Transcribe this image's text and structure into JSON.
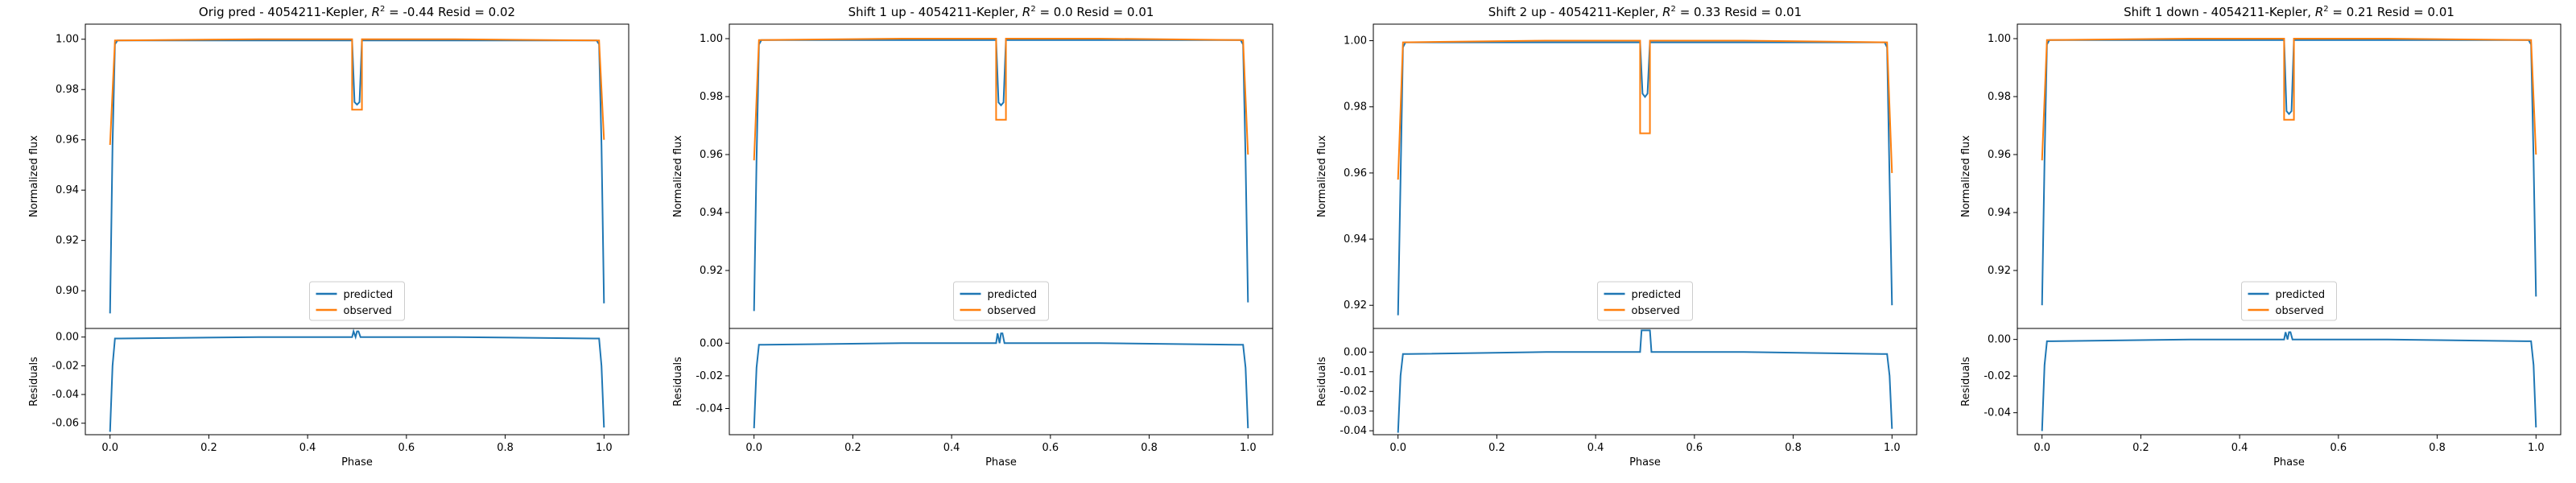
{
  "chart_data": [
    {
      "type": "line",
      "title": "Orig pred - 4054211-Kepler, $R^2 = $-0.44 Resid = 0.02",
      "title_parts": {
        "pre": "Orig pred - 4054211-Kepler, ",
        "r2": "-0.44",
        "post": " Resid = 0.02"
      },
      "xlabel": "Phase",
      "ylabel": "Normalized flux",
      "resid_ylabel": "Residuals",
      "xlim": [
        -0.05,
        1.05
      ],
      "ylim": [
        0.885,
        1.006
      ],
      "resid_ylim": [
        -0.068,
        0.006
      ],
      "xticks": [
        "0.0",
        "0.2",
        "0.4",
        "0.6",
        "0.8",
        "1.0"
      ],
      "yticks": [
        "0.90",
        "0.92",
        "0.94",
        "0.96",
        "0.98",
        "1.00"
      ],
      "resid_yticks": [
        "0.00",
        "-0.02",
        "-0.04",
        "-0.06"
      ],
      "legend": "lower-center",
      "grid": false,
      "series": [
        {
          "name": "predicted",
          "color": "#1f77b4",
          "x": [
            0.0,
            0.005,
            0.01,
            0.015,
            0.3,
            0.49,
            0.495,
            0.5,
            0.505,
            0.51,
            0.7,
            0.985,
            0.99,
            0.995,
            1.0
          ],
          "y": [
            0.891,
            0.958,
            0.998,
            0.9995,
            0.9995,
            0.9995,
            0.975,
            0.974,
            0.975,
            0.9995,
            0.9995,
            0.9995,
            0.998,
            0.958,
            0.895
          ]
        },
        {
          "name": "observed",
          "color": "#ff7f0e",
          "x": [
            0.0,
            0.01,
            0.3,
            0.49,
            0.49,
            0.51,
            0.51,
            0.7,
            0.99,
            1.0
          ],
          "y": [
            0.958,
            0.9995,
            1.0,
            1.0,
            0.972,
            0.972,
            1.0,
            1.0,
            0.9995,
            0.96
          ]
        }
      ],
      "residuals": {
        "name": "residuals",
        "color": "#1f77b4",
        "x": [
          0.0,
          0.005,
          0.01,
          0.02,
          0.3,
          0.49,
          0.493,
          0.497,
          0.5,
          0.503,
          0.507,
          0.51,
          0.7,
          0.98,
          0.99,
          0.995,
          1.0
        ],
        "y": [
          -0.066,
          -0.02,
          -0.001,
          -0.001,
          0.0,
          0.0,
          0.004,
          0.0,
          0.004,
          0.004,
          0.0,
          0.0,
          0.0,
          -0.001,
          -0.001,
          -0.02,
          -0.063
        ]
      }
    },
    {
      "type": "line",
      "title": "Shift 1 up - 4054211-Kepler, $R^2 = $0.0 Resid = 0.01",
      "title_parts": {
        "pre": "Shift 1 up - 4054211-Kepler, ",
        "r2": "0.0",
        "post": " Resid = 0.01"
      },
      "xlabel": "Phase",
      "ylabel": "Normalized flux",
      "resid_ylabel": "Residuals",
      "xlim": [
        -0.05,
        1.05
      ],
      "ylim": [
        0.9,
        1.005
      ],
      "resid_ylim": [
        -0.056,
        0.009
      ],
      "xticks": [
        "0.0",
        "0.2",
        "0.4",
        "0.6",
        "0.8",
        "1.0"
      ],
      "yticks": [
        "0.92",
        "0.94",
        "0.96",
        "0.98",
        "1.00"
      ],
      "resid_yticks": [
        "0.00",
        "-0.02",
        "-0.04"
      ],
      "legend": "lower-center",
      "grid": false,
      "series": [
        {
          "name": "predicted",
          "color": "#1f77b4",
          "x": [
            0.0,
            0.005,
            0.01,
            0.015,
            0.3,
            0.49,
            0.495,
            0.5,
            0.505,
            0.51,
            0.7,
            0.985,
            0.99,
            0.995,
            1.0
          ],
          "y": [
            0.906,
            0.958,
            0.998,
            0.9995,
            0.9995,
            0.9995,
            0.978,
            0.977,
            0.978,
            0.9995,
            0.9995,
            0.9995,
            0.998,
            0.958,
            0.909
          ]
        },
        {
          "name": "observed",
          "color": "#ff7f0e",
          "x": [
            0.0,
            0.01,
            0.3,
            0.49,
            0.49,
            0.51,
            0.51,
            0.7,
            0.99,
            1.0
          ],
          "y": [
            0.958,
            0.9995,
            1.0,
            1.0,
            0.972,
            0.972,
            1.0,
            1.0,
            0.9995,
            0.96
          ]
        }
      ],
      "residuals": {
        "name": "residuals",
        "color": "#1f77b4",
        "x": [
          0.0,
          0.005,
          0.01,
          0.02,
          0.3,
          0.49,
          0.493,
          0.497,
          0.5,
          0.503,
          0.507,
          0.51,
          0.7,
          0.98,
          0.99,
          0.995,
          1.0
        ],
        "y": [
          -0.052,
          -0.015,
          -0.001,
          -0.001,
          0.0,
          0.0,
          0.006,
          0.0,
          0.006,
          0.006,
          0.0,
          0.0,
          0.0,
          -0.001,
          -0.001,
          -0.015,
          -0.052
        ]
      }
    },
    {
      "type": "line",
      "title": "Shift 2 up - 4054211-Kepler, $R^2 = $0.33 Resid = 0.01",
      "title_parts": {
        "pre": "Shift 2 up - 4054211-Kepler, ",
        "r2": "0.33",
        "post": " Resid = 0.01"
      },
      "xlabel": "Phase",
      "ylabel": "Normalized flux",
      "resid_ylabel": "Residuals",
      "xlim": [
        -0.05,
        1.05
      ],
      "ylim": [
        0.913,
        1.005
      ],
      "resid_ylim": [
        -0.042,
        0.012
      ],
      "xticks": [
        "0.0",
        "0.2",
        "0.4",
        "0.6",
        "0.8",
        "1.0"
      ],
      "yticks": [
        "0.92",
        "0.94",
        "0.96",
        "0.98",
        "1.00"
      ],
      "resid_yticks": [
        "0.00",
        "-0.01",
        "-0.02",
        "-0.03",
        "-0.04"
      ],
      "legend": "lower-center",
      "grid": false,
      "series": [
        {
          "name": "predicted",
          "color": "#1f77b4",
          "x": [
            0.0,
            0.005,
            0.01,
            0.015,
            0.3,
            0.49,
            0.495,
            0.5,
            0.505,
            0.51,
            0.7,
            0.985,
            0.99,
            0.995,
            1.0
          ],
          "y": [
            0.917,
            0.958,
            0.998,
            0.9995,
            0.9995,
            0.9995,
            0.984,
            0.983,
            0.984,
            0.9995,
            0.9995,
            0.9995,
            0.998,
            0.958,
            0.92
          ]
        },
        {
          "name": "observed",
          "color": "#ff7f0e",
          "x": [
            0.0,
            0.01,
            0.3,
            0.49,
            0.49,
            0.51,
            0.51,
            0.7,
            0.99,
            1.0
          ],
          "y": [
            0.958,
            0.9995,
            1.0,
            1.0,
            0.972,
            0.972,
            1.0,
            1.0,
            0.9995,
            0.96
          ]
        }
      ],
      "residuals": {
        "name": "residuals",
        "color": "#1f77b4",
        "x": [
          0.0,
          0.005,
          0.01,
          0.02,
          0.3,
          0.49,
          0.493,
          0.51,
          0.513,
          0.7,
          0.98,
          0.99,
          0.995,
          1.0
        ],
        "y": [
          -0.041,
          -0.012,
          -0.001,
          -0.001,
          0.0,
          0.0,
          0.011,
          0.011,
          0.0,
          0.0,
          -0.001,
          -0.001,
          -0.012,
          -0.039
        ]
      }
    },
    {
      "type": "line",
      "title": "Shift 1 down - 4054211-Kepler, $R^2 = $0.21 Resid = 0.01",
      "title_parts": {
        "pre": "Shift 1 down - 4054211-Kepler, ",
        "r2": "0.21",
        "post": " Resid = 0.01"
      },
      "xlabel": "Phase",
      "ylabel": "Normalized flux",
      "resid_ylabel": "Residuals",
      "xlim": [
        -0.05,
        1.05
      ],
      "ylim": [
        0.9,
        1.005
      ],
      "resid_ylim": [
        -0.052,
        0.006
      ],
      "xticks": [
        "0.0",
        "0.2",
        "0.4",
        "0.6",
        "0.8",
        "1.0"
      ],
      "yticks": [
        "0.92",
        "0.94",
        "0.96",
        "0.98",
        "1.00"
      ],
      "resid_yticks": [
        "0.00",
        "-0.02",
        "-0.04"
      ],
      "legend": "lower-center",
      "grid": false,
      "series": [
        {
          "name": "predicted",
          "color": "#1f77b4",
          "x": [
            0.0,
            0.005,
            0.01,
            0.015,
            0.3,
            0.49,
            0.495,
            0.5,
            0.505,
            0.51,
            0.7,
            0.985,
            0.99,
            0.995,
            1.0
          ],
          "y": [
            0.908,
            0.958,
            0.998,
            0.9995,
            0.9995,
            0.9995,
            0.975,
            0.974,
            0.975,
            0.9995,
            0.9995,
            0.9995,
            0.998,
            0.958,
            0.911
          ]
        },
        {
          "name": "observed",
          "color": "#ff7f0e",
          "x": [
            0.0,
            0.01,
            0.3,
            0.49,
            0.49,
            0.51,
            0.51,
            0.7,
            0.99,
            1.0
          ],
          "y": [
            0.958,
            0.9995,
            1.0,
            1.0,
            0.972,
            0.972,
            1.0,
            1.0,
            0.9995,
            0.96
          ]
        }
      ],
      "residuals": {
        "name": "residuals",
        "color": "#1f77b4",
        "x": [
          0.0,
          0.005,
          0.01,
          0.02,
          0.3,
          0.49,
          0.493,
          0.497,
          0.5,
          0.503,
          0.507,
          0.51,
          0.7,
          0.98,
          0.99,
          0.995,
          1.0
        ],
        "y": [
          -0.05,
          -0.014,
          -0.001,
          -0.001,
          0.0,
          0.0,
          0.004,
          0.0,
          0.004,
          0.004,
          0.0,
          0.0,
          0.0,
          -0.001,
          -0.001,
          -0.014,
          -0.048
        ]
      }
    }
  ]
}
